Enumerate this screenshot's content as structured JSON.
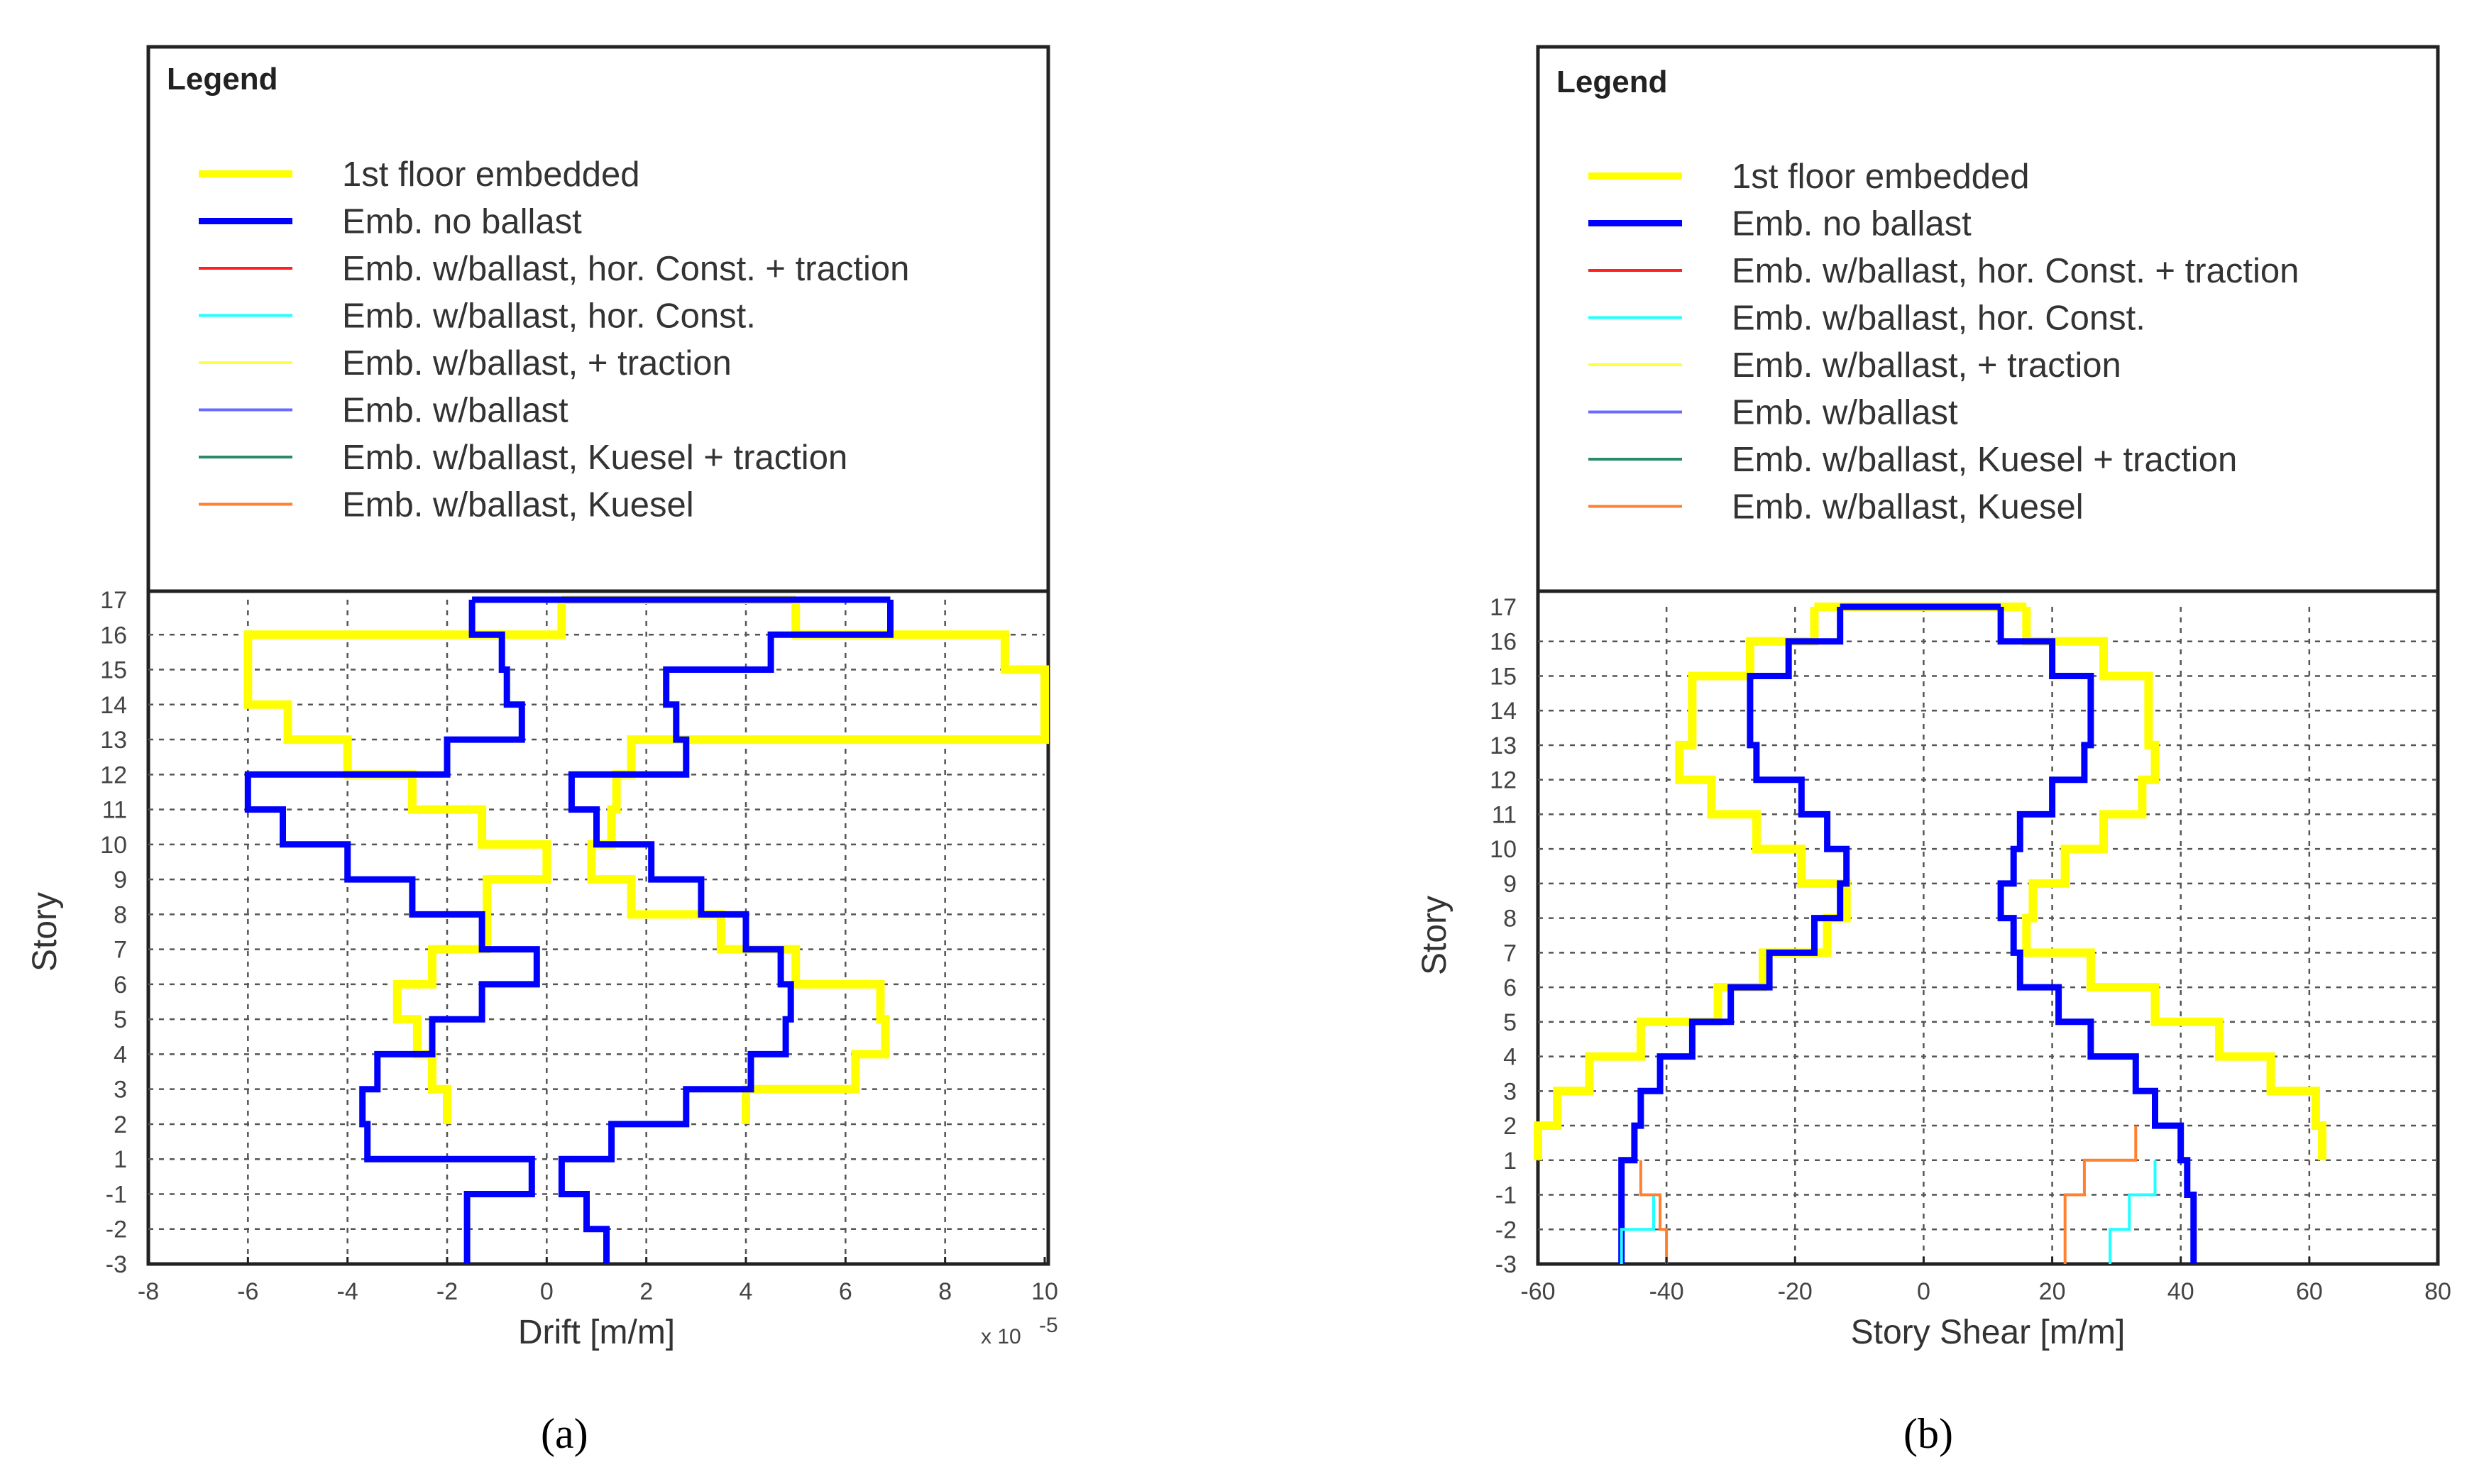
{
  "legend_title": "Legend",
  "legend_entries": [
    {
      "label": "1st floor embedded",
      "color": "#ffff00",
      "width": 10
    },
    {
      "label": "Emb. no ballast",
      "color": "#0000ff",
      "width": 9
    },
    {
      "label": "Emb. w/ballast,  hor. Const. + traction",
      "color": "#ff2020",
      "width": 4
    },
    {
      "label": "Emb. w/ballast,  hor. Const.",
      "color": "#20ffff",
      "width": 4
    },
    {
      "label": "Emb. w/ballast,  + traction",
      "color": "#ffff40",
      "width": 4
    },
    {
      "label": "Emb. w/ballast",
      "color": "#6a6aff",
      "width": 4
    },
    {
      "label": "Emb. w/ballast,  Kuesel + traction",
      "color": "#2a8a6a",
      "width": 4
    },
    {
      "label": "Emb. w/ballast,  Kuesel",
      "color": "#ff8030",
      "width": 4
    }
  ],
  "captions": [
    "(a)",
    "(b)"
  ],
  "chart_data": [
    {
      "type": "line",
      "title": "",
      "xlabel": "Drift [m/m]",
      "ylabel": "Story",
      "x_exponent_label": "x 10",
      "x_exponent_power": "-5",
      "xlim": [
        -8,
        10
      ],
      "xticks": [
        -8,
        -6,
        -4,
        -2,
        0,
        2,
        4,
        6,
        8,
        10
      ],
      "xtick_labels": [
        "-8",
        "-6",
        "-4",
        "-2",
        "0",
        "2",
        "4",
        "6",
        "8",
        "10"
      ],
      "yticks": [
        "-3",
        "-2",
        "-1",
        "1",
        "2",
        "3",
        "4",
        "5",
        "6",
        "7",
        "8",
        "9",
        "10",
        "11",
        "12",
        "13",
        "14",
        "15",
        "16",
        "17"
      ],
      "grid": true,
      "note": "Piecewise-constant story profiles; each series has a minimum (left) and maximum (right) envelope. steps are [value, story_bottom, story_top] with story as tick index 0..19.",
      "series": [
        {
          "name": "1st floor embedded",
          "min": [
            [
              -2.0,
              4,
              5
            ],
            [
              -2.3,
              5,
              6
            ],
            [
              -2.6,
              6,
              7
            ],
            [
              -3.0,
              7,
              8
            ],
            [
              -2.3,
              8,
              9
            ],
            [
              -1.2,
              9,
              10
            ],
            [
              -1.2,
              10,
              11
            ],
            [
              0.0,
              11,
              12
            ],
            [
              -1.3,
              12,
              13
            ],
            [
              -2.7,
              13,
              14
            ],
            [
              -4.0,
              14,
              15
            ],
            [
              -5.2,
              15,
              16
            ],
            [
              -6.0,
              16,
              17
            ],
            [
              -6.0,
              17,
              18
            ],
            [
              0.3,
              18,
              19
            ]
          ],
          "max": [
            [
              4.0,
              4,
              5
            ],
            [
              6.2,
              5,
              6
            ],
            [
              6.8,
              6,
              7
            ],
            [
              6.7,
              7,
              8
            ],
            [
              5.0,
              8,
              9
            ],
            [
              3.5,
              9,
              10
            ],
            [
              1.7,
              10,
              11
            ],
            [
              0.9,
              11,
              12
            ],
            [
              1.3,
              12,
              13
            ],
            [
              1.4,
              13,
              14
            ],
            [
              1.7,
              14,
              15
            ],
            [
              10.0,
              15,
              16
            ],
            [
              10.0,
              16,
              17
            ],
            [
              9.2,
              17,
              18
            ],
            [
              5.0,
              18,
              19
            ]
          ]
        },
        {
          "name": "Emb. no ballast",
          "min": [
            [
              -1.6,
              0,
              1
            ],
            [
              -1.6,
              1,
              2
            ],
            [
              -0.3,
              2,
              3
            ],
            [
              -3.6,
              3,
              4
            ],
            [
              -3.7,
              4,
              5
            ],
            [
              -3.4,
              5,
              6
            ],
            [
              -2.3,
              6,
              7
            ],
            [
              -1.3,
              7,
              8
            ],
            [
              -0.2,
              8,
              9
            ],
            [
              -1.3,
              9,
              10
            ],
            [
              -2.7,
              10,
              11
            ],
            [
              -4.0,
              11,
              12
            ],
            [
              -5.3,
              12,
              13
            ],
            [
              -6.0,
              13,
              14
            ],
            [
              -2.0,
              14,
              15
            ],
            [
              -0.5,
              15,
              16
            ],
            [
              -0.8,
              16,
              17
            ],
            [
              -0.9,
              17,
              18
            ],
            [
              -1.5,
              18,
              19
            ]
          ],
          "max": [
            [
              1.2,
              0,
              1
            ],
            [
              0.8,
              1,
              2
            ],
            [
              0.3,
              2,
              3
            ],
            [
              1.3,
              3,
              4
            ],
            [
              2.8,
              4,
              5
            ],
            [
              4.1,
              5,
              6
            ],
            [
              4.8,
              6,
              7
            ],
            [
              4.9,
              7,
              8
            ],
            [
              4.7,
              8,
              9
            ],
            [
              4.0,
              9,
              10
            ],
            [
              3.1,
              10,
              11
            ],
            [
              2.1,
              11,
              12
            ],
            [
              1.0,
              12,
              13
            ],
            [
              0.5,
              13,
              14
            ],
            [
              2.8,
              14,
              15
            ],
            [
              2.6,
              15,
              16
            ],
            [
              2.4,
              16,
              17
            ],
            [
              4.5,
              17,
              18
            ],
            [
              6.9,
              18,
              19
            ]
          ]
        }
      ]
    },
    {
      "type": "line",
      "title": "",
      "xlabel": "Story Shear [m/m]",
      "ylabel": "Story",
      "xlim": [
        -60,
        80
      ],
      "xticks": [
        -60,
        -40,
        -20,
        0,
        20,
        40,
        60,
        80
      ],
      "xtick_labels": [
        "-60",
        "-40",
        "-20",
        "0",
        "20",
        "40",
        "60",
        "80"
      ],
      "yticks": [
        "-3",
        "-2",
        "-1",
        "1",
        "2",
        "3",
        "4",
        "5",
        "6",
        "7",
        "8",
        "9",
        "10",
        "11",
        "12",
        "13",
        "14",
        "15",
        "16",
        "17"
      ],
      "grid": true,
      "series": [
        {
          "name": "1st floor embedded",
          "min": [
            [
              -60,
              3,
              4
            ],
            [
              -57,
              4,
              5
            ],
            [
              -52,
              5,
              6
            ],
            [
              -44,
              6,
              7
            ],
            [
              -32,
              7,
              8
            ],
            [
              -25,
              8,
              9
            ],
            [
              -15,
              9,
              10
            ],
            [
              -12,
              10,
              11
            ],
            [
              -19,
              11,
              12
            ],
            [
              -26,
              12,
              13
            ],
            [
              -33,
              13,
              14
            ],
            [
              -38,
              14,
              15
            ],
            [
              -36,
              15,
              16
            ],
            [
              -36,
              16,
              17
            ],
            [
              -27,
              17,
              18
            ],
            [
              -17,
              18,
              19
            ]
          ],
          "max": [
            [
              62,
              3,
              4
            ],
            [
              61,
              4,
              5
            ],
            [
              54,
              5,
              6
            ],
            [
              46,
              6,
              7
            ],
            [
              36,
              7,
              8
            ],
            [
              26,
              8,
              9
            ],
            [
              16,
              9,
              10
            ],
            [
              17,
              10,
              11
            ],
            [
              22,
              11,
              12
            ],
            [
              28,
              12,
              13
            ],
            [
              34,
              13,
              14
            ],
            [
              36,
              14,
              15
            ],
            [
              35,
              15,
              16
            ],
            [
              35,
              16,
              17
            ],
            [
              28,
              17,
              18
            ],
            [
              16,
              18,
              19
            ]
          ]
        },
        {
          "name": "Emb. no ballast",
          "min": [
            [
              -47,
              0,
              1
            ],
            [
              -47,
              1,
              2
            ],
            [
              -47,
              2,
              3
            ],
            [
              -45,
              3,
              4
            ],
            [
              -44,
              4,
              5
            ],
            [
              -41,
              5,
              6
            ],
            [
              -36,
              6,
              7
            ],
            [
              -30,
              7,
              8
            ],
            [
              -24,
              8,
              9
            ],
            [
              -17,
              9,
              10
            ],
            [
              -13,
              10,
              11
            ],
            [
              -12,
              11,
              12
            ],
            [
              -15,
              12,
              13
            ],
            [
              -19,
              13,
              14
            ],
            [
              -26,
              14,
              15
            ],
            [
              -27,
              15,
              16
            ],
            [
              -27,
              16,
              17
            ],
            [
              -21,
              17,
              18
            ],
            [
              -13,
              18,
              19
            ]
          ],
          "max": [
            [
              42,
              0,
              1
            ],
            [
              42,
              1,
              2
            ],
            [
              41,
              2,
              3
            ],
            [
              40,
              3,
              4
            ],
            [
              36,
              4,
              5
            ],
            [
              33,
              5,
              6
            ],
            [
              26,
              6,
              7
            ],
            [
              21,
              7,
              8
            ],
            [
              15,
              8,
              9
            ],
            [
              14,
              9,
              10
            ],
            [
              12,
              10,
              11
            ],
            [
              14,
              11,
              12
            ],
            [
              15,
              12,
              13
            ],
            [
              20,
              13,
              14
            ],
            [
              25,
              14,
              15
            ],
            [
              26,
              15,
              16
            ],
            [
              26,
              16,
              17
            ],
            [
              20,
              17,
              18
            ],
            [
              12,
              18,
              19
            ]
          ]
        },
        {
          "name": "Emb. w/ballast,  hor. Const.",
          "min": [
            [
              -47,
              0,
              1
            ],
            [
              -42,
              1,
              2
            ]
          ],
          "max": [
            [
              29,
              0,
              1
            ],
            [
              32,
              1,
              2
            ],
            [
              36,
              2,
              3
            ]
          ]
        },
        {
          "name": "Emb. w/ballast,  Kuesel",
          "min": [
            [
              -40,
              0,
              1
            ],
            [
              -41,
              1,
              2
            ],
            [
              -44,
              2,
              3
            ]
          ],
          "max": [
            [
              22,
              0,
              1
            ],
            [
              22,
              1,
              2
            ],
            [
              25,
              2,
              3
            ],
            [
              33,
              3,
              4
            ]
          ]
        }
      ]
    }
  ]
}
